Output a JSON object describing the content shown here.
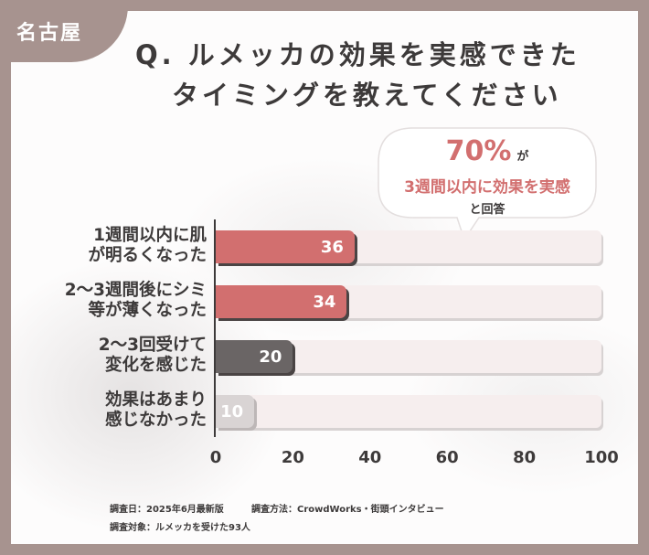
{
  "region": "名古屋",
  "title_line1": "Q. ルメッカの効果を実感できた",
  "title_line2": "タイミングを教えてください",
  "callout": {
    "percent": "70%",
    "particle": "が",
    "main": "3週間以内に効果を実感",
    "sub": "と回答"
  },
  "footer": {
    "date": "調査日：2025年6月最新版",
    "method": "調査方法：CrowdWorks・街頭インタビュー",
    "target": "調査対象：ルメッカを受けた93人"
  },
  "colors": {
    "pink": "#d26f6f",
    "dark": "#6a6565",
    "light": "#d9d4d4",
    "track": "#f6eeee",
    "tab": "#a7938f"
  },
  "chart_data": {
    "type": "bar",
    "orientation": "horizontal",
    "categories": [
      [
        "1週間以内に肌",
        "が明るくなった"
      ],
      [
        "2～3週間後にシミ",
        "等が薄くなった"
      ],
      [
        "2～3回受けて",
        "変化を感じた"
      ],
      [
        "効果はあまり",
        "感じなかった"
      ]
    ],
    "values": [
      36,
      34,
      20,
      10
    ],
    "bar_colors": [
      "#d26f6f",
      "#d26f6f",
      "#6a6565",
      "#d9d4d4"
    ],
    "xlim": [
      0,
      100
    ],
    "xticks": [
      "0",
      "20",
      "40",
      "60",
      "80",
      "100"
    ]
  }
}
